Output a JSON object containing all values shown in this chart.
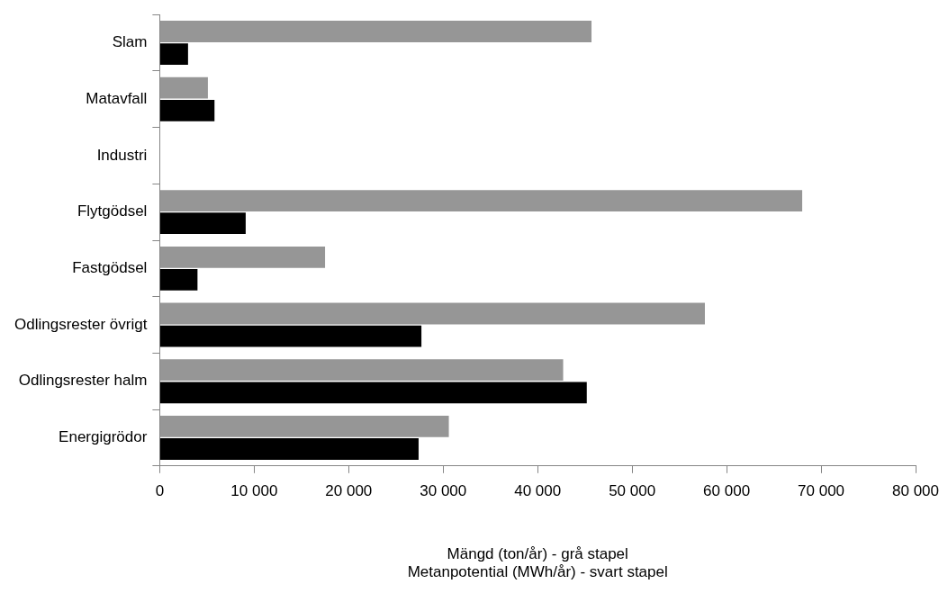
{
  "chart_data": {
    "type": "bar",
    "orientation": "horizontal",
    "xlabel": "Mängd (ton/år) - grå stapel\nMetanpotential (MWh/år) - svart stapel",
    "categories": [
      "Slam",
      "Matavfall",
      "Industri",
      "Flytgödsel",
      "Fastgödsel",
      "Odlingsrester övrigt",
      "Odlingsrester halm",
      "Energigrödor"
    ],
    "series": [
      {
        "color": "#969696",
        "values": [
          45700,
          5100,
          0,
          68000,
          17500,
          57700,
          42700,
          30600
        ]
      },
      {
        "color": "#000000",
        "values": [
          3000,
          5800,
          0,
          9100,
          4000,
          27700,
          45200,
          27400
        ]
      }
    ],
    "xlim": [
      0,
      80000
    ],
    "xticks": [
      0,
      {
        "value": 10000,
        "label": "10 000"
      },
      {
        "value": 20000,
        "label": "20 000"
      },
      {
        "value": 30000,
        "label": "30 000"
      },
      {
        "value": 40000,
        "label": "40 000"
      },
      {
        "value": 50000,
        "label": "50 000"
      },
      {
        "value": 60000,
        "label": "60 000"
      },
      {
        "value": 70000,
        "label": "70 000"
      },
      {
        "value": 80000,
        "label": "80 000"
      }
    ],
    "grid": false,
    "legend": false
  }
}
